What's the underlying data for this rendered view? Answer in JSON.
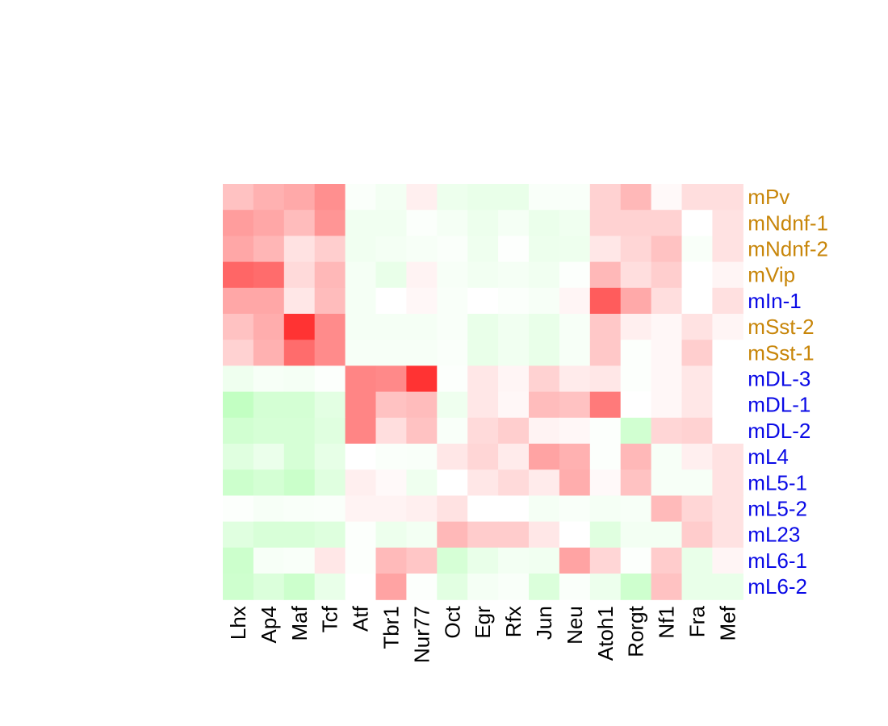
{
  "chart_data": {
    "type": "heatmap",
    "title": "",
    "xlabel": "",
    "ylabel": "",
    "columns": [
      "Lhx",
      "Ap4",
      "Maf",
      "Tcf",
      "Atf",
      "Tbr1",
      "Nur77",
      "Oct",
      "Egr",
      "Rfx",
      "Jun",
      "Neu",
      "Atoh1",
      "Rorgt",
      "Nf1",
      "Fra",
      "Mef"
    ],
    "rows": [
      {
        "label": "mPv",
        "group": "interneuron"
      },
      {
        "label": "mNdnf-1",
        "group": "interneuron"
      },
      {
        "label": "mNdnf-2",
        "group": "interneuron"
      },
      {
        "label": "mVip",
        "group": "interneuron"
      },
      {
        "label": "mIn-1",
        "group": "other"
      },
      {
        "label": "mSst-2",
        "group": "interneuron"
      },
      {
        "label": "mSst-1",
        "group": "interneuron"
      },
      {
        "label": "mDL-3",
        "group": "other"
      },
      {
        "label": "mDL-1",
        "group": "other"
      },
      {
        "label": "mDL-2",
        "group": "other"
      },
      {
        "label": "mL4",
        "group": "other"
      },
      {
        "label": "mL5-1",
        "group": "other"
      },
      {
        "label": "mL5-2",
        "group": "other"
      },
      {
        "label": "mL23",
        "group": "other"
      },
      {
        "label": "mL6-1",
        "group": "other"
      },
      {
        "label": "mL6-2",
        "group": "other"
      }
    ],
    "group_colors": {
      "interneuron": "#c8860a",
      "other": "#0a0ae6"
    },
    "color_scale": {
      "negative": "#99ff99",
      "zero": "#ffffff",
      "positive": "#ff3333",
      "range": [
        -1,
        1
      ]
    },
    "values": [
      [
        0.3,
        0.38,
        0.42,
        0.55,
        -0.05,
        -0.12,
        0.08,
        -0.18,
        -0.22,
        -0.22,
        -0.06,
        -0.06,
        0.22,
        0.35,
        0.03,
        0.16,
        0.16
      ],
      [
        0.48,
        0.43,
        0.33,
        0.52,
        -0.14,
        -0.14,
        -0.04,
        -0.1,
        -0.18,
        -0.1,
        -0.2,
        -0.15,
        0.22,
        0.22,
        0.22,
        0.0,
        0.14
      ],
      [
        0.43,
        0.36,
        0.14,
        0.24,
        -0.14,
        -0.11,
        -0.08,
        -0.05,
        -0.16,
        -0.02,
        -0.18,
        -0.17,
        0.12,
        0.2,
        0.3,
        -0.06,
        0.14
      ],
      [
        0.75,
        0.72,
        0.18,
        0.35,
        -0.1,
        -0.22,
        0.06,
        -0.08,
        -0.13,
        -0.1,
        -0.14,
        -0.03,
        0.35,
        0.16,
        0.24,
        0.0,
        0.05
      ],
      [
        0.43,
        0.43,
        0.12,
        0.33,
        -0.1,
        0.0,
        0.04,
        -0.06,
        0.0,
        -0.04,
        -0.08,
        0.05,
        0.8,
        0.42,
        0.16,
        0.0,
        0.15
      ],
      [
        0.3,
        0.4,
        1.0,
        0.57,
        -0.1,
        -0.1,
        -0.1,
        -0.06,
        -0.22,
        -0.14,
        -0.22,
        -0.08,
        0.27,
        0.08,
        0.04,
        0.14,
        0.05
      ],
      [
        0.22,
        0.38,
        0.72,
        0.57,
        -0.08,
        -0.08,
        -0.08,
        -0.05,
        -0.22,
        -0.14,
        -0.22,
        -0.08,
        0.27,
        -0.03,
        0.04,
        0.24,
        0.0
      ],
      [
        -0.16,
        -0.08,
        -0.1,
        -0.03,
        0.6,
        0.58,
        1.0,
        -0.03,
        0.12,
        0.05,
        0.22,
        0.1,
        0.12,
        -0.03,
        0.04,
        0.12,
        0.0
      ],
      [
        -0.6,
        -0.42,
        -0.42,
        -0.27,
        0.6,
        0.3,
        0.33,
        -0.16,
        0.12,
        0.04,
        0.33,
        0.3,
        0.65,
        0.0,
        0.04,
        0.12,
        0.0
      ],
      [
        -0.45,
        -0.4,
        -0.4,
        -0.3,
        0.6,
        0.16,
        0.3,
        -0.06,
        0.18,
        0.24,
        0.06,
        0.04,
        -0.03,
        -0.45,
        0.2,
        0.22,
        0.0
      ],
      [
        -0.3,
        -0.2,
        -0.4,
        -0.24,
        0.0,
        -0.05,
        -0.06,
        0.12,
        0.2,
        0.1,
        0.45,
        0.38,
        -0.03,
        0.35,
        -0.08,
        0.08,
        0.14
      ],
      [
        -0.5,
        -0.42,
        -0.52,
        -0.3,
        0.08,
        0.03,
        -0.16,
        0.0,
        0.12,
        0.18,
        0.1,
        0.4,
        0.03,
        0.3,
        -0.08,
        -0.08,
        0.14
      ],
      [
        -0.03,
        -0.08,
        -0.06,
        -0.05,
        0.06,
        0.06,
        0.08,
        0.14,
        0.0,
        0.0,
        -0.1,
        -0.06,
        -0.1,
        -0.08,
        0.34,
        0.2,
        0.14
      ],
      [
        -0.3,
        -0.38,
        -0.38,
        -0.32,
        -0.03,
        -0.18,
        -0.12,
        0.35,
        0.25,
        0.25,
        0.12,
        0.0,
        -0.3,
        -0.12,
        -0.12,
        0.25,
        0.14
      ],
      [
        -0.5,
        -0.08,
        -0.06,
        0.12,
        -0.03,
        0.34,
        0.28,
        -0.4,
        -0.22,
        -0.12,
        -0.14,
        0.45,
        0.2,
        -0.03,
        0.25,
        -0.22,
        0.05
      ],
      [
        -0.48,
        -0.35,
        -0.5,
        -0.22,
        0.0,
        0.45,
        -0.03,
        -0.28,
        -0.1,
        -0.06,
        -0.35,
        -0.05,
        -0.18,
        -0.48,
        0.3,
        -0.22,
        -0.22
      ]
    ]
  }
}
